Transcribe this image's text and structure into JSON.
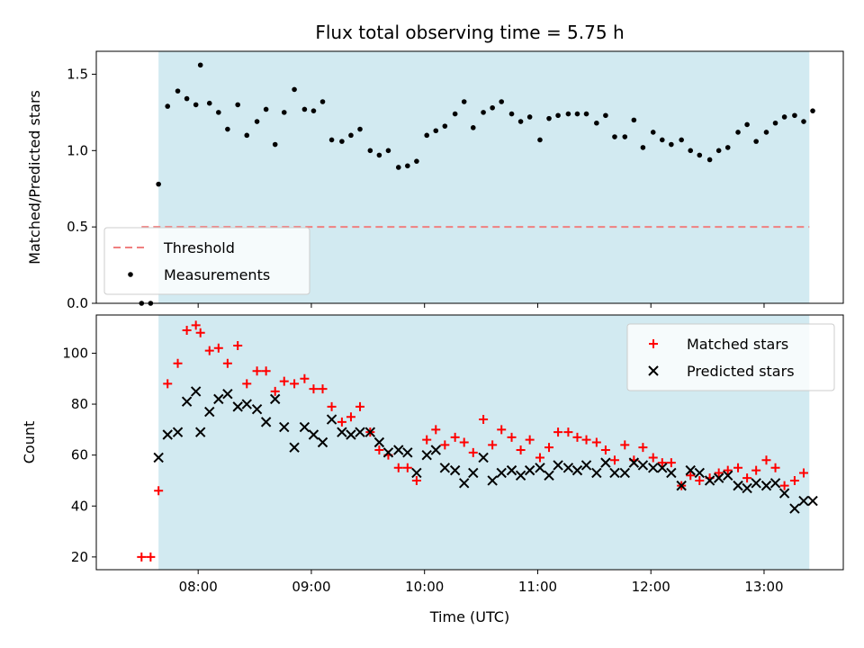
{
  "chart_data": {
    "title": "Flux total observing time = 5.75 h",
    "xlabel": "Time (UTC)",
    "x_unit": "hours (UTC)",
    "x_ticks": [
      {
        "value": 8,
        "label": "08:00"
      },
      {
        "value": 9,
        "label": "09:00"
      },
      {
        "value": 10,
        "label": "10:00"
      },
      {
        "value": 11,
        "label": "11:00"
      },
      {
        "value": 12,
        "label": "12:00"
      },
      {
        "value": 13,
        "label": "13:00"
      }
    ],
    "xlim": [
      7.1,
      13.7
    ],
    "observing_window": {
      "start": 7.65,
      "end": 13.4,
      "color": "#add8e6"
    },
    "panels": [
      {
        "type": "scatter",
        "ylabel": "Matched/Predicted stars",
        "ylim": [
          0,
          1.65
        ],
        "y_ticks": [
          {
            "value": 0,
            "label": "0.0"
          },
          {
            "value": 0.5,
            "label": "0.5"
          },
          {
            "value": 1.0,
            "label": "1.0"
          },
          {
            "value": 1.5,
            "label": "1.5"
          }
        ],
        "legend_position": "lower-left",
        "threshold": {
          "name": "Threshold",
          "value": 0.5,
          "x_start": 7.5,
          "x_end": 13.4,
          "color": "#f08080"
        },
        "series": [
          {
            "name": "Measurements",
            "marker": "dot",
            "color": "#000000",
            "points": [
              [
                7.5,
                0.0
              ],
              [
                7.58,
                0.0
              ],
              [
                7.65,
                0.78
              ],
              [
                7.73,
                1.29
              ],
              [
                7.82,
                1.39
              ],
              [
                7.9,
                1.34
              ],
              [
                7.98,
                1.3
              ],
              [
                8.02,
                1.56
              ],
              [
                8.1,
                1.31
              ],
              [
                8.18,
                1.25
              ],
              [
                8.26,
                1.14
              ],
              [
                8.35,
                1.3
              ],
              [
                8.43,
                1.1
              ],
              [
                8.52,
                1.19
              ],
              [
                8.6,
                1.27
              ],
              [
                8.68,
                1.04
              ],
              [
                8.76,
                1.25
              ],
              [
                8.85,
                1.4
              ],
              [
                8.94,
                1.27
              ],
              [
                9.02,
                1.26
              ],
              [
                9.1,
                1.32
              ],
              [
                9.18,
                1.07
              ],
              [
                9.27,
                1.06
              ],
              [
                9.35,
                1.1
              ],
              [
                9.43,
                1.14
              ],
              [
                9.52,
                1.0
              ],
              [
                9.6,
                0.97
              ],
              [
                9.68,
                1.0
              ],
              [
                9.77,
                0.89
              ],
              [
                9.85,
                0.9
              ],
              [
                9.93,
                0.93
              ],
              [
                10.02,
                1.1
              ],
              [
                10.1,
                1.13
              ],
              [
                10.18,
                1.16
              ],
              [
                10.27,
                1.24
              ],
              [
                10.35,
                1.32
              ],
              [
                10.43,
                1.15
              ],
              [
                10.52,
                1.25
              ],
              [
                10.6,
                1.28
              ],
              [
                10.68,
                1.32
              ],
              [
                10.77,
                1.24
              ],
              [
                10.85,
                1.19
              ],
              [
                10.93,
                1.22
              ],
              [
                11.02,
                1.07
              ],
              [
                11.1,
                1.21
              ],
              [
                11.18,
                1.23
              ],
              [
                11.27,
                1.24
              ],
              [
                11.35,
                1.24
              ],
              [
                11.43,
                1.24
              ],
              [
                11.52,
                1.18
              ],
              [
                11.6,
                1.23
              ],
              [
                11.68,
                1.09
              ],
              [
                11.77,
                1.09
              ],
              [
                11.85,
                1.2
              ],
              [
                11.93,
                1.02
              ],
              [
                12.02,
                1.12
              ],
              [
                12.1,
                1.07
              ],
              [
                12.18,
                1.04
              ],
              [
                12.27,
                1.07
              ],
              [
                12.35,
                1.0
              ],
              [
                12.43,
                0.97
              ],
              [
                12.52,
                0.94
              ],
              [
                12.6,
                1.0
              ],
              [
                12.68,
                1.02
              ],
              [
                12.77,
                1.12
              ],
              [
                12.85,
                1.17
              ],
              [
                12.93,
                1.06
              ],
              [
                13.02,
                1.12
              ],
              [
                13.1,
                1.18
              ],
              [
                13.18,
                1.22
              ],
              [
                13.27,
                1.23
              ],
              [
                13.35,
                1.19
              ],
              [
                13.43,
                1.26
              ]
            ]
          }
        ]
      },
      {
        "type": "scatter",
        "ylabel": "Count",
        "ylim": [
          15,
          115
        ],
        "y_ticks": [
          {
            "value": 20,
            "label": "20"
          },
          {
            "value": 40,
            "label": "40"
          },
          {
            "value": 60,
            "label": "60"
          },
          {
            "value": 80,
            "label": "80"
          },
          {
            "value": 100,
            "label": "100"
          }
        ],
        "legend_position": "upper-right",
        "series": [
          {
            "name": "Matched stars",
            "marker": "plus",
            "color": "#ff0000",
            "points": [
              [
                7.5,
                20
              ],
              [
                7.58,
                20
              ],
              [
                7.65,
                46
              ],
              [
                7.73,
                88
              ],
              [
                7.82,
                96
              ],
              [
                7.9,
                109
              ],
              [
                7.98,
                111
              ],
              [
                8.02,
                108
              ],
              [
                8.1,
                101
              ],
              [
                8.18,
                102
              ],
              [
                8.26,
                96
              ],
              [
                8.35,
                103
              ],
              [
                8.43,
                88
              ],
              [
                8.52,
                93
              ],
              [
                8.6,
                93
              ],
              [
                8.68,
                85
              ],
              [
                8.76,
                89
              ],
              [
                8.85,
                88
              ],
              [
                8.94,
                90
              ],
              [
                9.02,
                86
              ],
              [
                9.1,
                86
              ],
              [
                9.18,
                79
              ],
              [
                9.27,
                73
              ],
              [
                9.35,
                75
              ],
              [
                9.43,
                79
              ],
              [
                9.52,
                69
              ],
              [
                9.6,
                62
              ],
              [
                9.68,
                60
              ],
              [
                9.77,
                55
              ],
              [
                9.85,
                55
              ],
              [
                9.93,
                50
              ],
              [
                10.02,
                66
              ],
              [
                10.1,
                70
              ],
              [
                10.18,
                64
              ],
              [
                10.27,
                67
              ],
              [
                10.35,
                65
              ],
              [
                10.43,
                61
              ],
              [
                10.52,
                74
              ],
              [
                10.6,
                64
              ],
              [
                10.68,
                70
              ],
              [
                10.77,
                67
              ],
              [
                10.85,
                62
              ],
              [
                10.93,
                66
              ],
              [
                11.02,
                59
              ],
              [
                11.1,
                63
              ],
              [
                11.18,
                69
              ],
              [
                11.27,
                69
              ],
              [
                11.35,
                67
              ],
              [
                11.43,
                66
              ],
              [
                11.52,
                65
              ],
              [
                11.6,
                62
              ],
              [
                11.68,
                58
              ],
              [
                11.77,
                64
              ],
              [
                11.85,
                58
              ],
              [
                11.93,
                63
              ],
              [
                12.02,
                59
              ],
              [
                12.1,
                57
              ],
              [
                12.18,
                57
              ],
              [
                12.27,
                48
              ],
              [
                12.35,
                52
              ],
              [
                12.43,
                50
              ],
              [
                12.52,
                51
              ],
              [
                12.6,
                53
              ],
              [
                12.68,
                54
              ],
              [
                12.77,
                55
              ],
              [
                12.85,
                51
              ],
              [
                12.93,
                54
              ],
              [
                13.02,
                58
              ],
              [
                13.1,
                55
              ],
              [
                13.18,
                48
              ],
              [
                13.27,
                50
              ],
              [
                13.35,
                53
              ]
            ]
          },
          {
            "name": "Predicted stars",
            "marker": "x",
            "color": "#000000",
            "points": [
              [
                7.65,
                59
              ],
              [
                7.73,
                68
              ],
              [
                7.82,
                69
              ],
              [
                7.9,
                81
              ],
              [
                7.98,
                85
              ],
              [
                8.02,
                69
              ],
              [
                8.1,
                77
              ],
              [
                8.18,
                82
              ],
              [
                8.26,
                84
              ],
              [
                8.35,
                79
              ],
              [
                8.43,
                80
              ],
              [
                8.52,
                78
              ],
              [
                8.6,
                73
              ],
              [
                8.68,
                82
              ],
              [
                8.76,
                71
              ],
              [
                8.85,
                63
              ],
              [
                8.94,
                71
              ],
              [
                9.02,
                68
              ],
              [
                9.1,
                65
              ],
              [
                9.18,
                74
              ],
              [
                9.27,
                69
              ],
              [
                9.35,
                68
              ],
              [
                9.43,
                69
              ],
              [
                9.52,
                69
              ],
              [
                9.6,
                65
              ],
              [
                9.68,
                61
              ],
              [
                9.77,
                62
              ],
              [
                9.85,
                61
              ],
              [
                9.93,
                53
              ],
              [
                10.02,
                60
              ],
              [
                10.1,
                62
              ],
              [
                10.18,
                55
              ],
              [
                10.27,
                54
              ],
              [
                10.35,
                49
              ],
              [
                10.43,
                53
              ],
              [
                10.52,
                59
              ],
              [
                10.6,
                50
              ],
              [
                10.68,
                53
              ],
              [
                10.77,
                54
              ],
              [
                10.85,
                52
              ],
              [
                10.93,
                54
              ],
              [
                11.02,
                55
              ],
              [
                11.1,
                52
              ],
              [
                11.18,
                56
              ],
              [
                11.27,
                55
              ],
              [
                11.35,
                54
              ],
              [
                11.43,
                56
              ],
              [
                11.52,
                53
              ],
              [
                11.6,
                57
              ],
              [
                11.68,
                53
              ],
              [
                11.77,
                53
              ],
              [
                11.85,
                57
              ],
              [
                11.93,
                56
              ],
              [
                12.02,
                55
              ],
              [
                12.1,
                55
              ],
              [
                12.18,
                53
              ],
              [
                12.27,
                48
              ],
              [
                12.35,
                54
              ],
              [
                12.43,
                53
              ],
              [
                12.52,
                50
              ],
              [
                12.6,
                51
              ],
              [
                12.68,
                52
              ],
              [
                12.77,
                48
              ],
              [
                12.85,
                47
              ],
              [
                12.93,
                49
              ],
              [
                13.02,
                48
              ],
              [
                13.1,
                49
              ],
              [
                13.18,
                45
              ],
              [
                13.27,
                39
              ],
              [
                13.35,
                42
              ],
              [
                13.43,
                42
              ]
            ]
          }
        ]
      }
    ]
  }
}
